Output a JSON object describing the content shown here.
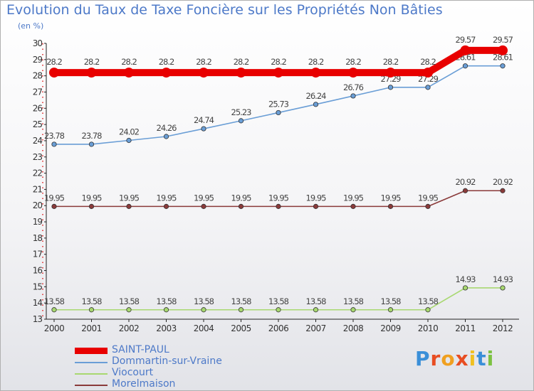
{
  "title": "Evolution du Taux de Taxe Foncière sur les Propriétés Non Bâties",
  "unit_label": "(en %)",
  "logo": {
    "text": "Proxiti",
    "letter_colors": [
      "#3a8fd8",
      "#e84d22",
      "#f0a020",
      "#e84d22",
      "#f0c020",
      "#3a8fd8",
      "#7cc242"
    ]
  },
  "chart_data": {
    "type": "line",
    "title": "Evolution du Taux de Taxe Foncière sur les Propriétés Non Bâties",
    "ylabel": "(en %)",
    "xlabel": "",
    "x": [
      "2000",
      "2001",
      "2002",
      "2003",
      "2004",
      "2005",
      "2006",
      "2007",
      "2008",
      "2009",
      "2010",
      "2011",
      "2012"
    ],
    "ylim": [
      13,
      30
    ],
    "yticks": [
      13,
      14,
      15,
      16,
      17,
      18,
      19,
      20,
      21,
      22,
      23,
      24,
      25,
      26,
      27,
      28,
      29,
      30
    ],
    "series": [
      {
        "name": "SAINT-PAUL",
        "color": "#e80000",
        "values": [
          28.2,
          28.2,
          28.2,
          28.2,
          28.2,
          28.2,
          28.2,
          28.2,
          28.2,
          28.2,
          28.2,
          29.57,
          29.57
        ],
        "labels": [
          "28.2",
          "28.2",
          "28.2",
          "28.2",
          "28.2",
          "28.2",
          "28.2",
          "28.2",
          "28.2",
          "28.2",
          "28.2",
          "29.57",
          "29.57"
        ]
      },
      {
        "name": "Dommartin-sur-Vraine",
        "color": "#6a9ed6",
        "values": [
          23.78,
          23.78,
          24.02,
          24.26,
          24.74,
          25.23,
          25.73,
          26.24,
          26.76,
          27.29,
          27.29,
          28.61,
          28.61
        ],
        "labels": [
          "23.78",
          "23.78",
          "24.02",
          "24.26",
          "24.74",
          "25.23",
          "25.73",
          "26.24",
          "26.76",
          "27.29",
          "27.29",
          "28.61",
          "28.61"
        ]
      },
      {
        "name": "Viocourt",
        "color": "#a8d870",
        "values": [
          13.58,
          13.58,
          13.58,
          13.58,
          13.58,
          13.58,
          13.58,
          13.58,
          13.58,
          13.58,
          13.58,
          14.93,
          14.93
        ],
        "labels": [
          "13.58",
          "13.58",
          "13.58",
          "13.58",
          "13.58",
          "13.58",
          "13.58",
          "13.58",
          "13.58",
          "13.58",
          "13.58",
          "14.93",
          "14.93"
        ]
      },
      {
        "name": "Morelmaison",
        "color": "#8a3a3a",
        "values": [
          19.95,
          19.95,
          19.95,
          19.95,
          19.95,
          19.95,
          19.95,
          19.95,
          19.95,
          19.95,
          19.95,
          20.92,
          20.92
        ],
        "labels": [
          "19.95",
          "19.95",
          "19.95",
          "19.95",
          "19.95",
          "19.95",
          "19.95",
          "19.95",
          "19.95",
          "19.95",
          "19.95",
          "20.92",
          "20.92"
        ]
      }
    ],
    "legend_position": "bottom-left",
    "grid": false
  }
}
